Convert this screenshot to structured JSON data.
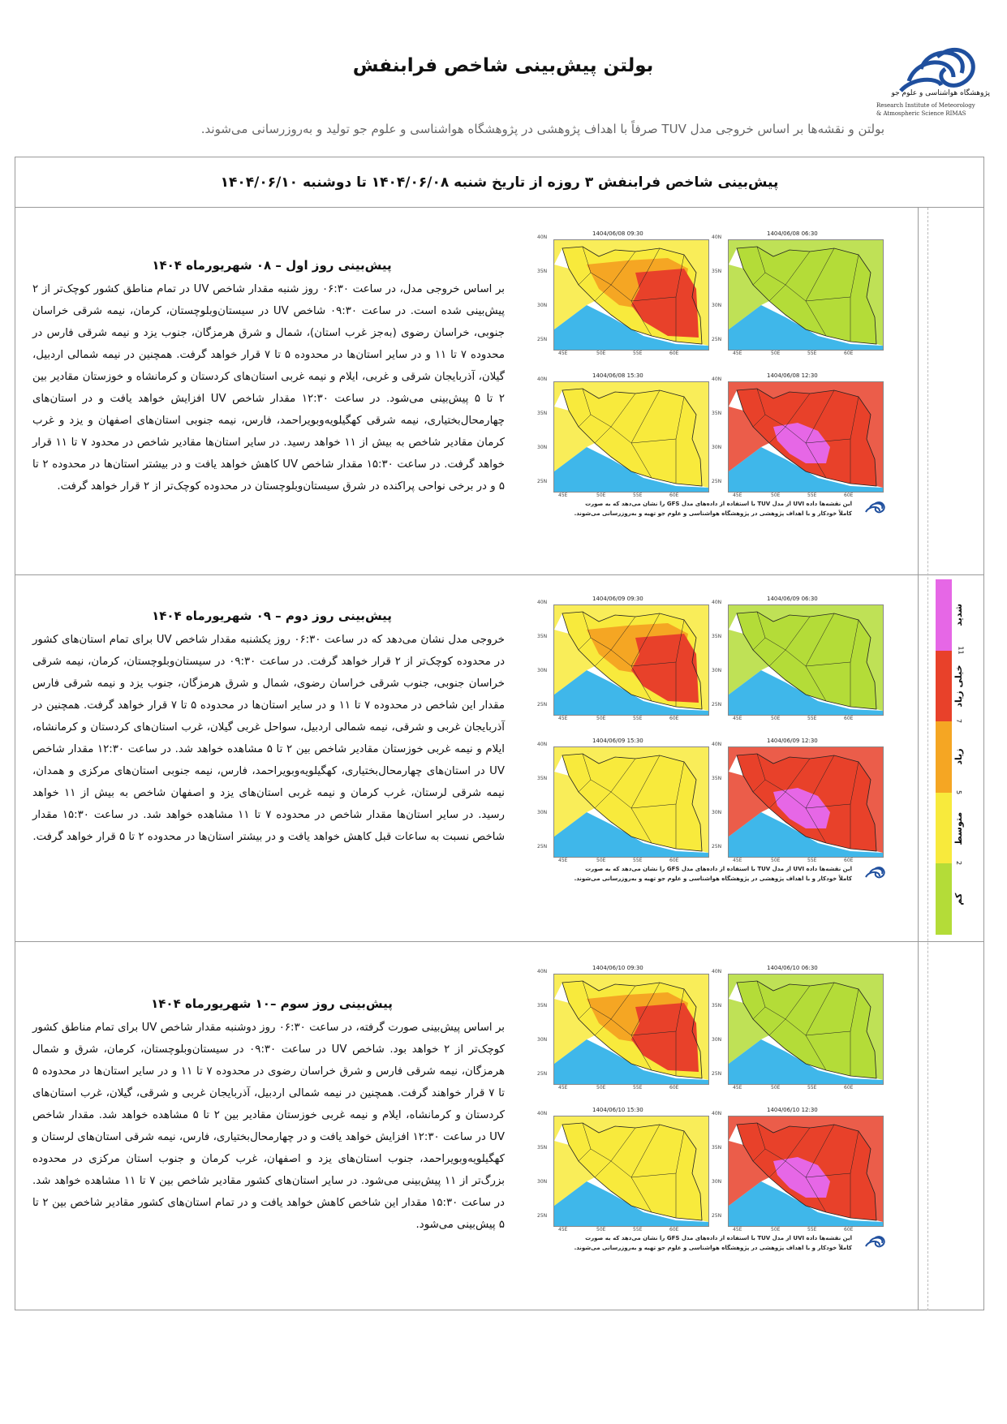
{
  "header": {
    "title": "بولتن پیش‌بینی شاخص فرابنفش",
    "subtitle": "بولتن و نقشه‌ها بر اساس خروجی مدل TUV صرفاً با اهداف پژوهشی در پژوهشگاه هواشناسی و علوم جو تولید و به‌روزرسانی می‌شوند.",
    "logo_fa": "پژوهشگاه هواشناسی و علوم جو",
    "logo_en_1": "Research Institute of Meteorology",
    "logo_en_2": "& Atmospheric Science RIMAS"
  },
  "frame_title": "پیش‌بینی شاخص فرابنفش ۳ روزه از تاریخ شنبه ۱۴۰۴/۰۶/۰۸ تا دوشنبه ۱۴۰۴/۰۶/۱۰",
  "days": [
    {
      "heading": "پیش‌بینی روز اول – ۰۸ شهریورماه ۱۴۰۴",
      "text": "بر اساس خروجی مدل، در ساعت ۰۶:۳۰ روز شنبه مقدار شاخص UV در تمام مناطق کشور کوچک‌تر از ۲ پیش‌بینی شده است. در ساعت ۰۹:۳۰ شاخص UV در سیستان‌وبلوچستان، کرمان، نیمه شرقی خراسان جنوبی، خراسان رضوی (به‌جز غرب استان)، شمال و شرق هرمزگان، جنوب یزد و نیمه شرقی فارس در محدوده ۷ تا ۱۱ و در سایر استان‌ها در محدوده ۵ تا ۷ قرار خواهد گرفت. همچنین در نیمه شمالی اردبیل، گیلان، آذربایجان شرقی و غربی، ایلام و نیمه غربی استان‌های کردستان و کرمانشاه و خوزستان مقادیر بین ۲ تا ۵ پیش‌بینی می‌شود. در ساعت ۱۲:۳۰ مقدار شاخص UV افزایش خواهد یافت و در استان‌های چهارمحال‌بختیاری، نیمه شرقی کهگیلویه‌وبویراحمد، فارس، نیمه جنوبی استان‌های اصفهان و یزد و غرب کرمان مقادیر شاخص به بیش از ۱۱ خواهد رسید. در سایر استان‌ها مقادیر شاخص در محدود ۷ تا ۱۱ قرار خواهد گرفت. در ساعت ۱۵:۳۰ مقدار شاخص UV کاهش خواهد یافت و در بیشتر استان‌ها در محدوده ۲ تا ۵ و در برخی نواحی پراکنده در شرق سیستان‌وبلوچستان در محدوده کوچک‌تر از ۲ قرار خواهد گرفت.",
      "maps": [
        "1404/06/08   06:30",
        "1404/06/08   09:30",
        "1404/06/08   12:30",
        "1404/06/08   15:30"
      ]
    },
    {
      "heading": "پیش‌بینی روز دوم – ۰۹ شهریورماه ۱۴۰۴",
      "text": "خروجی مدل نشان می‌دهد که در ساعت ۰۶:۳۰ روز یکشنبه مقدار شاخص UV برای تمام استان‌های کشور در محدوده کوچک‌تر از ۲ قرار خواهد گرفت. در ساعت ۰۹:۳۰ در سیستان‌وبلوچستان، کرمان، نیمه شرقی خراسان جنوبی، جنوب شرقی خراسان رضوی، شمال و شرق هرمزگان، جنوب یزد و نیمه شرقی فارس مقدار این شاخص در محدوده ۷ تا ۱۱ و در سایر استان‌ها در محدوده ۵ تا ۷ قرار خواهد گرفت. همچنین در آذربایجان غربی و شرقی، نیمه شمالی اردبیل، سواحل غربی گیلان، غرب استان‌های کردستان و کرمانشاه، ایلام و نیمه غربی خوزستان مقادیر شاخص بین ۲ تا ۵ مشاهده خواهد شد. در ساعت ۱۲:۳۰ مقدار شاخص UV در استان‌های چهارمحال‌بختیاری، کهگیلویه‌وبویراحمد، فارس، نیمه جنوبی استان‌های مرکزی و همدان، نیمه شرقی لرستان، غرب کرمان و نیمه غربی استان‌های یزد و اصفهان شاخص به بیش از ۱۱ خواهد رسید. در سایر استان‌ها مقدار شاخص در محدوده ۷ تا ۱۱ مشاهده خواهد شد. در ساعت ۱۵:۳۰ مقدار شاخص نسبت به ساعات قبل کاهش خواهد یافت و در بیشتر استان‌ها در محدوده ۲ تا ۵ قرار خواهد گرفت.",
      "maps": [
        "1404/06/09   06:30",
        "1404/06/09   09:30",
        "1404/06/09   12:30",
        "1404/06/09   15:30"
      ]
    },
    {
      "heading": "پیش‌بینی روز سوم –۱۰ شهریورماه ۱۴۰۴",
      "text": "بر اساس پیش‌بینی صورت گرفته، در ساعت ۰۶:۳۰ روز دوشنبه مقدار شاخص UV برای تمام مناطق کشور کوچک‌تر از ۲ خواهد بود. شاخص UV در ساعت ۰۹:۳۰ در سیستان‌وبلوچستان، کرمان، شرق و شمال هرمزگان، نیمه شرقی فارس و شرق خراسان رضوی در محدوده ۷ تا ۱۱ و در سایر استان‌ها در محدوده ۵ تا ۷ قرار خواهند گرفت. همچنین در نیمه شمالی اردبیل، آذربایجان غربی و شرقی، گیلان، غرب استان‌های کردستان و کرمانشاه، ایلام و نیمه غربی خوزستان مقادیر بین ۲ تا ۵ مشاهده خواهد شد. مقدار شاخص UV در ساعت ۱۲:۳۰ افزایش خواهد یافت و در چهارمحال‌بختیاری، فارس، نیمه شرقی استان‌های لرستان و کهگیلویه‌وبویراحمد، جنوب استان‌های یزد و اصفهان، غرب کرمان و جنوب استان مرکزی در محدوده بزرگ‌تر از ۱۱ پیش‌بینی می‌شود. در سایر استان‌های کشور مقادیر شاخص بین ۷ تا ۱۱ مشاهده خواهد شد. در ساعت ۱۵:۳۰ مقدار این شاخص کاهش خواهد یافت و در تمام استان‌های کشور مقادیر شاخص بین ۲ تا ۵ پیش‌بینی می‌شود.",
      "maps": [
        "1404/06/10   06:30",
        "1404/06/10   09:30",
        "1404/06/10   12:30",
        "1404/06/10   15:30"
      ]
    }
  ],
  "map_axes": {
    "lat": [
      "40N",
      "35N",
      "30N",
      "25N"
    ],
    "lon": [
      "45E",
      "50E",
      "55E",
      "60E"
    ]
  },
  "caption": {
    "line1": "این نقشه‌ها داده UVI از مدل TUV با استفاده از داده‌های مدل GFS را نشان می‌دهد که به صورت",
    "line2": "کاملاً خودکار و با اهداف پژوهشی در پژوهشگاه هواشناسی و علوم جو تهیه و به‌روزرسانی می‌شوند."
  },
  "legend": {
    "categories": [
      {
        "label": "شدید",
        "color": "#e667e6"
      },
      {
        "label": "خیلی زیاد",
        "color": "#e8412a"
      },
      {
        "label": "زیاد",
        "color": "#f5a623"
      },
      {
        "label": "متوسط",
        "color": "#f8ea3c"
      },
      {
        "label": "کم",
        "color": "#b4dc38"
      }
    ],
    "thresholds": [
      "11",
      "7",
      "5",
      "2"
    ]
  },
  "colors": {
    "low": "#b4dc38",
    "moderate": "#f8ea3c",
    "high": "#f5a623",
    "very_high": "#e8412a",
    "extreme": "#e667e6",
    "sea": "#3fb7ea",
    "frame": "#9a9a9a",
    "subtitle": "#666666"
  }
}
